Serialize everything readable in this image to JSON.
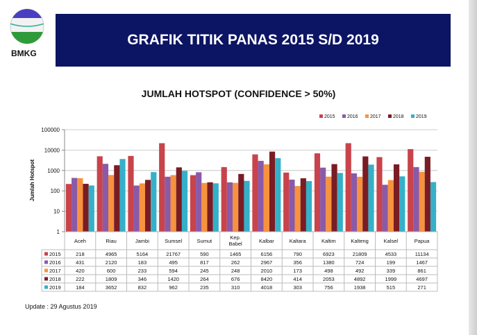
{
  "header": {
    "title": "GRAFIK TITIK PANAS 2015 S/D 2019",
    "logo_text": "BMKG"
  },
  "footer": {
    "update": "Update : 29 Agustus 2019"
  },
  "chart_data": {
    "type": "bar",
    "title": "JUMLAH HOTSPOT (CONFIDENCE > 50%)",
    "ylabel": "Jumlah Hotspot",
    "xlabel": "",
    "yscale": "log",
    "ylim": [
      1,
      100000
    ],
    "yticks": [
      "1",
      "10",
      "100",
      "1000",
      "10000",
      "100000"
    ],
    "grid": true,
    "legend": "top-right",
    "categories": [
      "Aceh",
      "Riau",
      "Jambi",
      "Sumsel",
      "Sumut",
      "Kep. Babel",
      "Kalbar",
      "Kaltara",
      "Kaltim",
      "Kalteng",
      "Kalsel",
      "Papua"
    ],
    "series": [
      {
        "name": "2015",
        "color": "#c8434b",
        "values": [
          218,
          4965,
          5164,
          21767,
          590,
          1465,
          6156,
          790,
          6923,
          21809,
          4533,
          11134
        ]
      },
      {
        "name": "2016",
        "color": "#8a5aa8",
        "values": [
          431,
          2120,
          183,
          495,
          817,
          262,
          2967,
          356,
          1380,
          724,
          199,
          1467
        ]
      },
      {
        "name": "2017",
        "color": "#f7923e",
        "values": [
          420,
          600,
          233,
          594,
          245,
          248,
          2010,
          173,
          498,
          492,
          339,
          861
        ]
      },
      {
        "name": "2018",
        "color": "#7a1c24",
        "values": [
          222,
          1809,
          346,
          1420,
          264,
          676,
          8420,
          414,
          2053,
          4892,
          1999,
          4697
        ]
      },
      {
        "name": "2019",
        "color": "#35b0c8",
        "values": [
          184,
          3652,
          832,
          962,
          235,
          310,
          4018,
          303,
          756,
          1938,
          515,
          271
        ]
      }
    ]
  }
}
